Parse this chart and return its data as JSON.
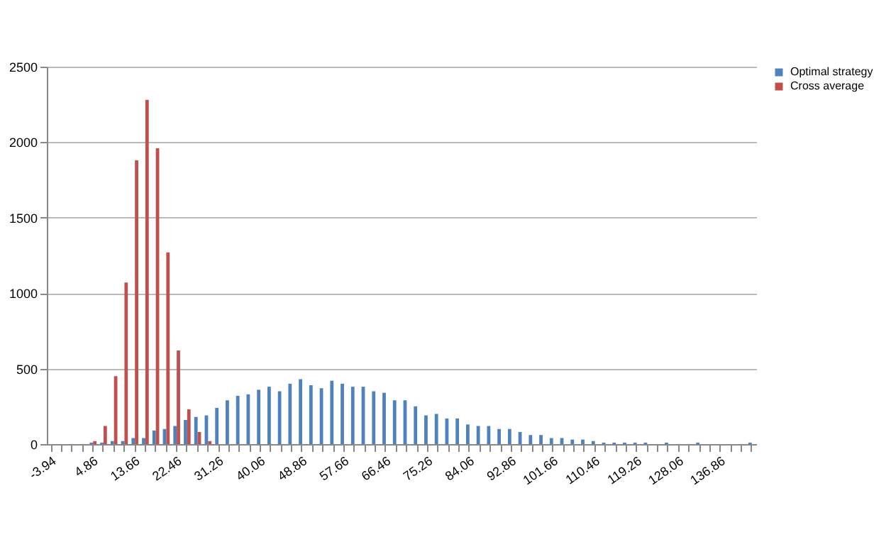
{
  "chart_data": {
    "type": "bar",
    "categories": [
      "-3.94",
      null,
      null,
      null,
      "4.86",
      null,
      null,
      null,
      "13.66",
      null,
      null,
      null,
      "22.46",
      null,
      null,
      null,
      "31.26",
      null,
      null,
      null,
      "40.06",
      null,
      null,
      null,
      "48.86",
      null,
      null,
      null,
      "57.66",
      null,
      null,
      null,
      "66.46",
      null,
      null,
      null,
      "75.26",
      null,
      null,
      null,
      "84.06",
      null,
      null,
      null,
      "92.86",
      null,
      null,
      null,
      "101.66",
      null,
      null,
      null,
      "110.46",
      null,
      null,
      null,
      "119.26",
      null,
      null,
      null,
      "128.06",
      null,
      null,
      null,
      "136.86",
      null,
      null,
      null
    ],
    "series": [
      {
        "name": "Optimal strategy",
        "color": "#4f81bd",
        "values": [
          0,
          0,
          0,
          0,
          10,
          10,
          20,
          20,
          40,
          40,
          90,
          100,
          120,
          160,
          180,
          190,
          240,
          290,
          320,
          330,
          360,
          380,
          350,
          400,
          430,
          390,
          370,
          420,
          400,
          380,
          380,
          350,
          340,
          290,
          290,
          250,
          190,
          200,
          170,
          170,
          130,
          120,
          120,
          100,
          100,
          80,
          60,
          60,
          40,
          40,
          30,
          30,
          20,
          10,
          10,
          10,
          10,
          10,
          0,
          10,
          0,
          0,
          10,
          0,
          0,
          0,
          0,
          10
        ]
      },
      {
        "name": "Cross average",
        "color": "#c0504d",
        "values": [
          0,
          0,
          0,
          0,
          20,
          120,
          450,
          1070,
          1880,
          2280,
          1960,
          1270,
          620,
          230,
          80,
          20,
          0,
          0,
          0,
          0,
          0,
          0,
          0,
          0,
          0,
          0,
          0,
          0,
          0,
          0,
          0,
          0,
          0,
          0,
          0,
          0,
          0,
          0,
          0,
          0,
          0,
          0,
          0,
          0,
          0,
          0,
          0,
          0,
          0,
          0,
          0,
          0,
          0,
          0,
          0,
          0,
          0,
          0,
          0,
          0,
          0,
          0,
          0,
          0,
          0,
          0,
          0,
          0
        ]
      }
    ],
    "ylim": [
      0,
      2500
    ],
    "yticks": [
      0,
      500,
      {
        "value": 1000,
        "label": "1000"
      },
      {
        "value": 1500,
        "label": "1500"
      },
      {
        "value": 2000,
        "label": "2000"
      },
      {
        "value": 2500,
        "label": "2500"
      }
    ],
    "grid": "y",
    "legend": "right"
  }
}
